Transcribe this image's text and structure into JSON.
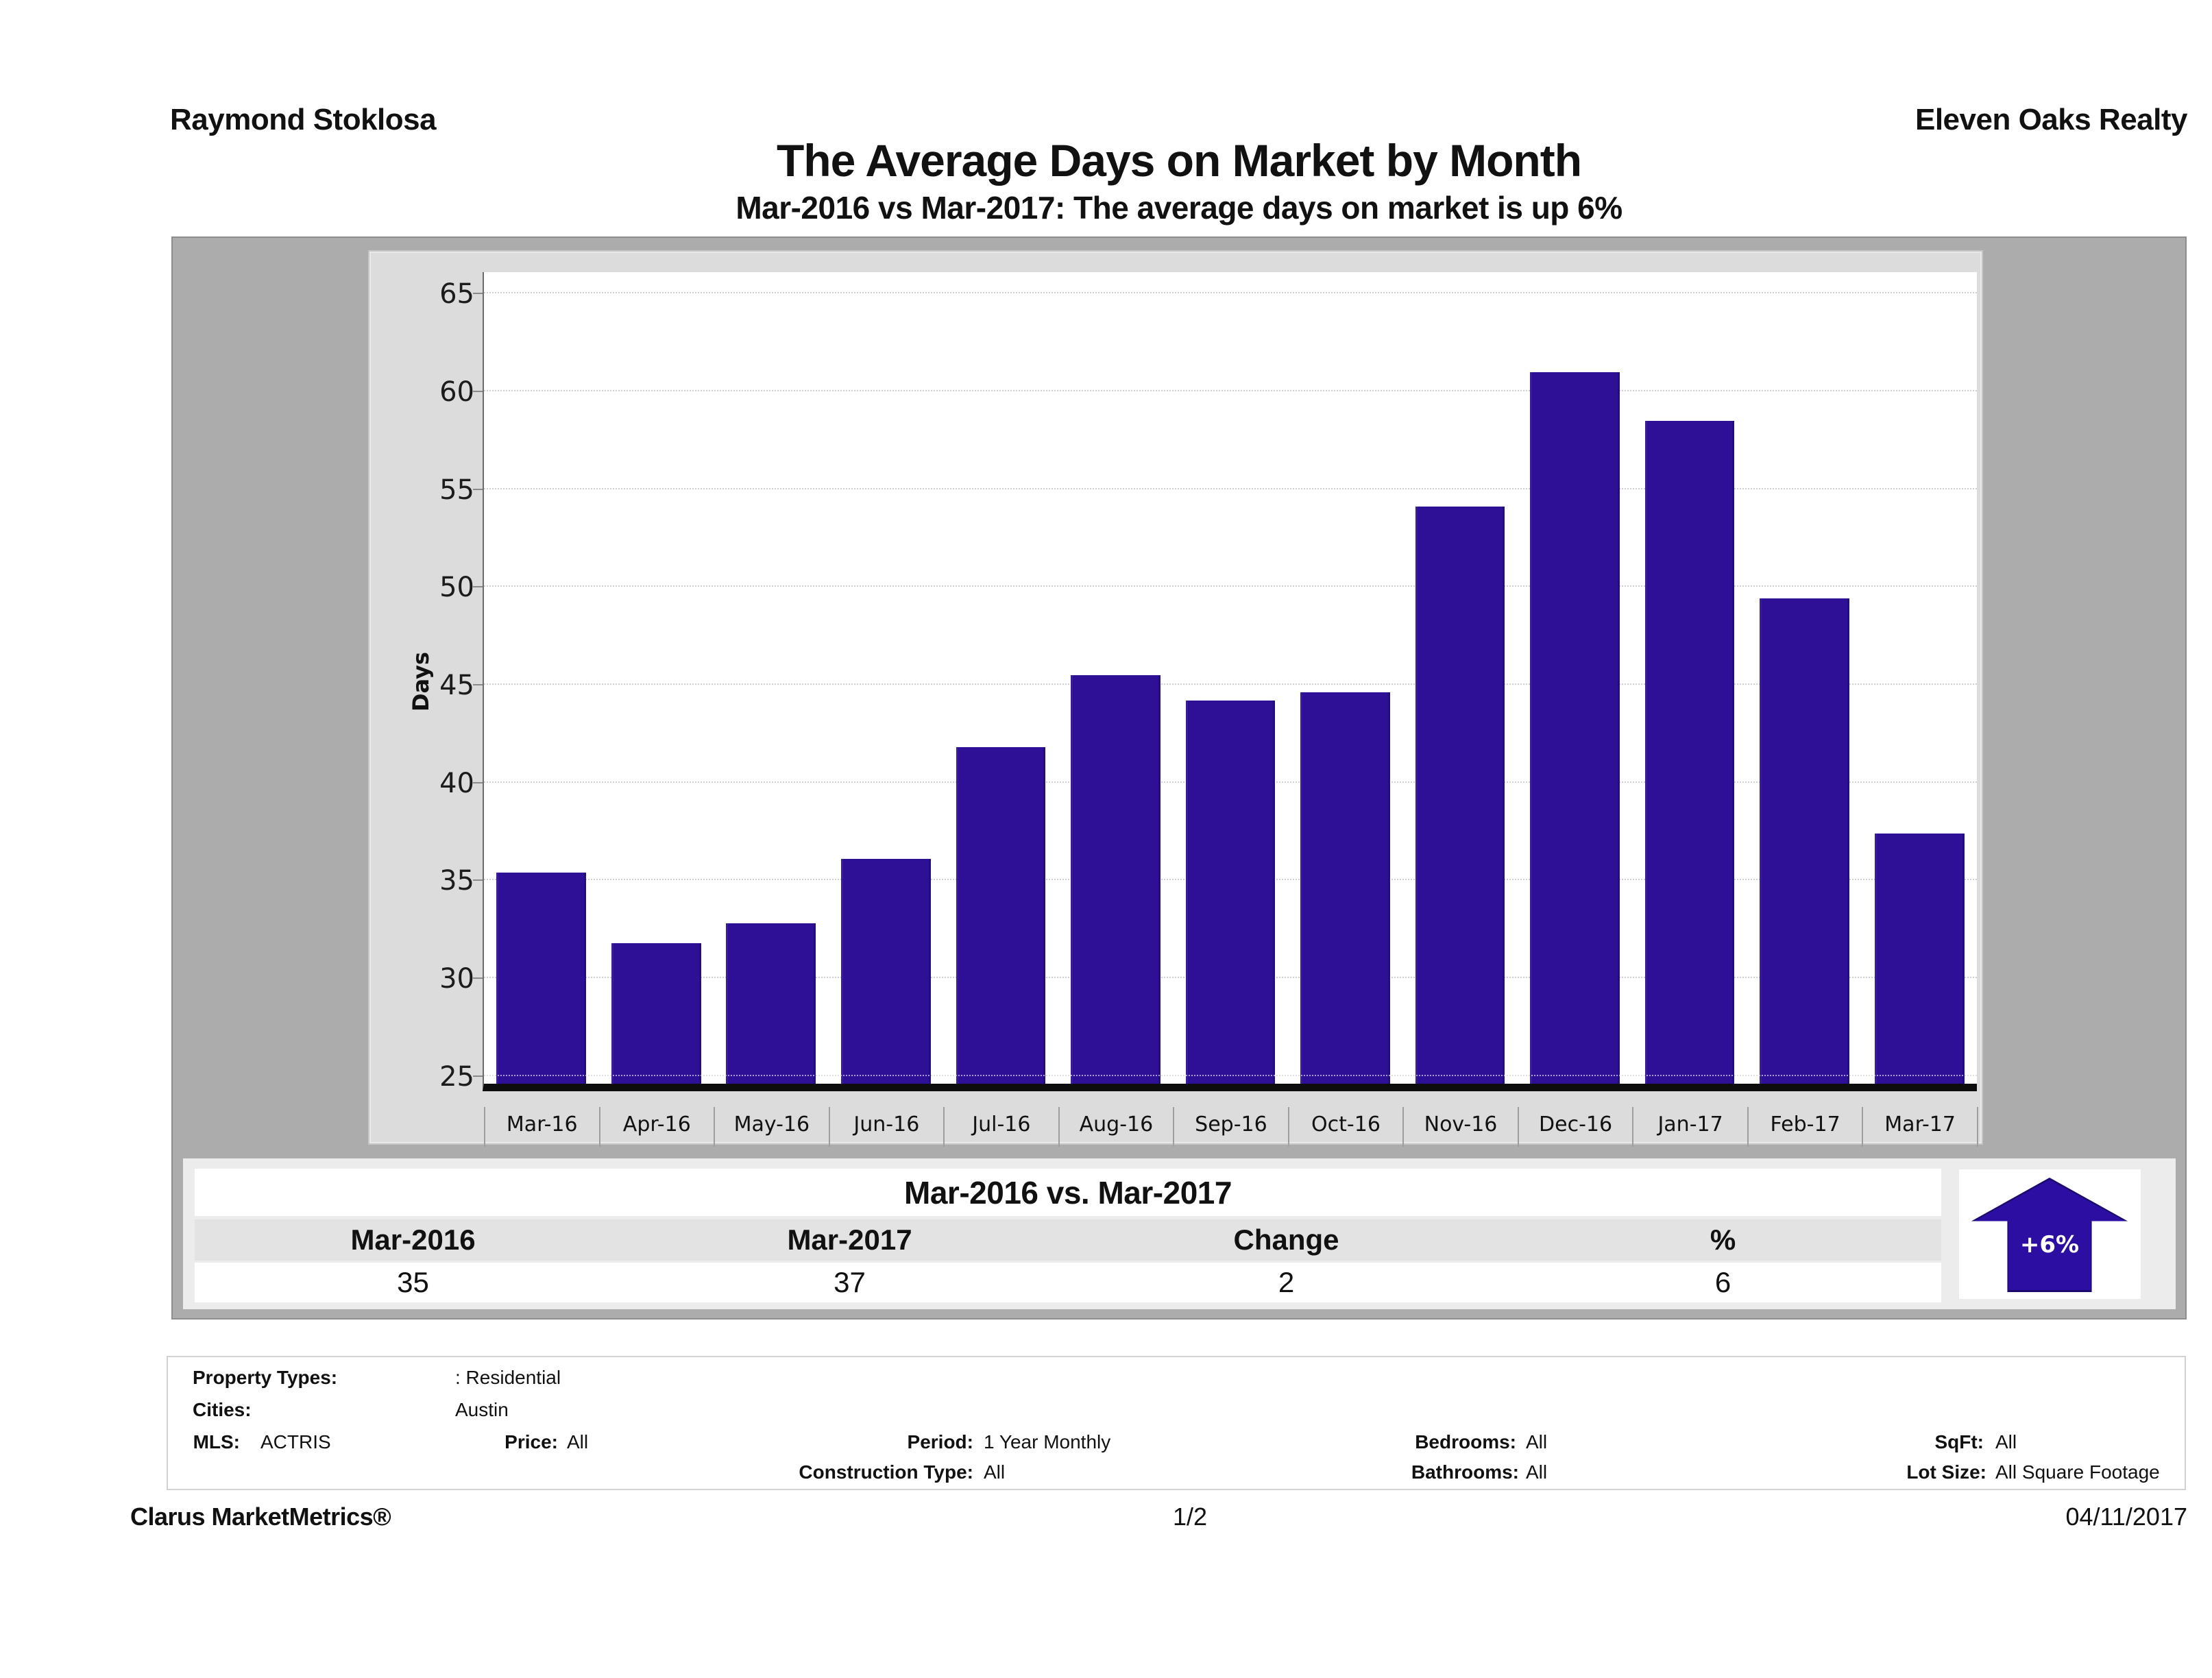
{
  "page": {
    "agent_name": "Raymond Stoklosa",
    "company_name": "Eleven Oaks Realty",
    "title": "The Average Days on Market by Month",
    "subtitle": "Mar-2016 vs Mar-2017: The average days on market is up 6%"
  },
  "chart_data": {
    "type": "bar",
    "title": "The Average Days on Market by Month",
    "xlabel": "",
    "ylabel": "Days",
    "categories": [
      "Mar-16",
      "Apr-16",
      "May-16",
      "Jun-16",
      "Jul-16",
      "Aug-16",
      "Sep-16",
      "Oct-16",
      "Nov-16",
      "Dec-16",
      "Jan-17",
      "Feb-17",
      "Mar-17"
    ],
    "values": [
      35.4,
      31.8,
      32.8,
      36.1,
      41.8,
      45.5,
      44.2,
      44.6,
      54.1,
      61.0,
      58.5,
      49.4,
      37.4
    ],
    "yticks": [
      25,
      30,
      35,
      40,
      45,
      50,
      55,
      60,
      65
    ],
    "ylim": [
      24.6,
      66.1
    ],
    "grid": true,
    "legend": false,
    "bar_color": "#2e1096",
    "plot_bg": "#ffffff",
    "panel_bg": "#dcdcdc"
  },
  "comparison": {
    "title": "Mar-2016 vs. Mar-2017",
    "columns": [
      "Mar-2016",
      "Mar-2017",
      "Change",
      "%"
    ],
    "values": [
      "35",
      "37",
      "2",
      "6"
    ],
    "badge_label": "+6%",
    "badge_color": "#2c0fa2"
  },
  "filters": {
    "property_types_label": "Property Types:",
    "property_types_value": ": Residential",
    "cities_label": "Cities:",
    "cities_value": "Austin",
    "mls_label": "MLS:",
    "mls_value": "ACTRIS",
    "price_label": "Price:",
    "price_value": "All",
    "period_label": "Period:",
    "period_value": "1 Year Monthly",
    "bedrooms_label": "Bedrooms:",
    "bedrooms_value": "All",
    "sqft_label": "SqFt:",
    "sqft_value": "All",
    "construction_type_label": "Construction Type:",
    "construction_type_value": "All",
    "bathrooms_label": "Bathrooms:",
    "bathrooms_value": "All",
    "lot_size_label": "Lot Size:",
    "lot_size_value": "All Square Footage"
  },
  "footer": {
    "brand": "Clarus MarketMetrics®",
    "page_number": "1/2",
    "date": "04/11/2017"
  }
}
